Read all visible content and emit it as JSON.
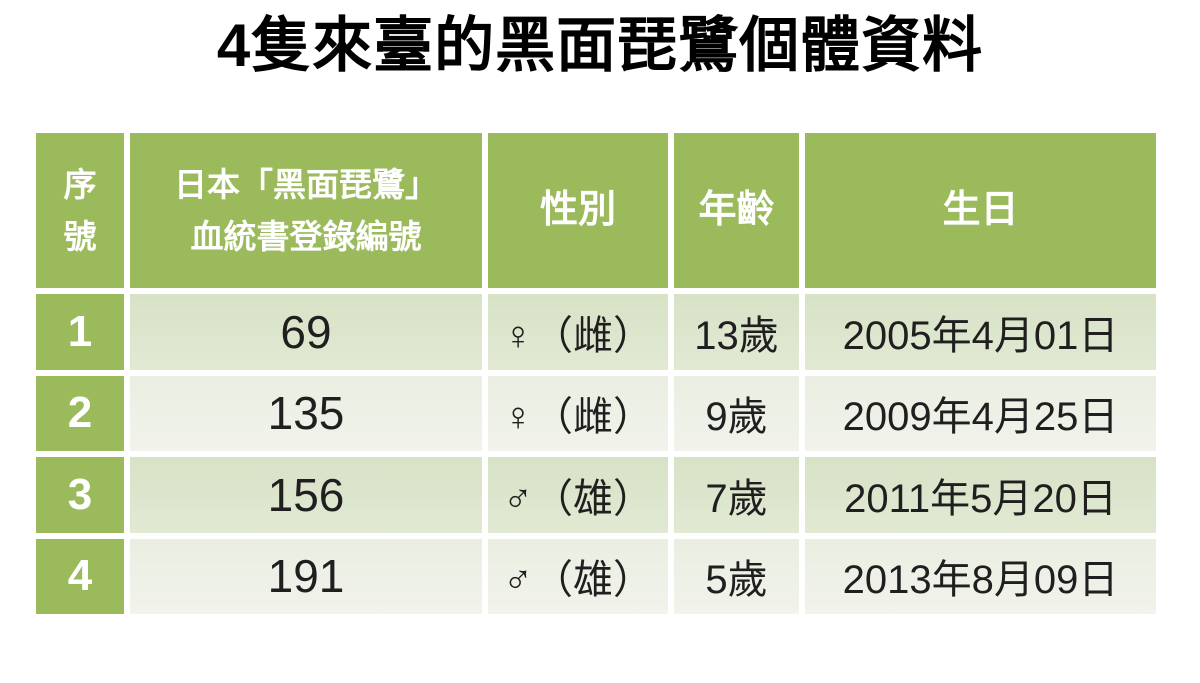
{
  "title": "4隻來臺的黑面琵鷺個體資料",
  "colors": {
    "accent_green": "#9BBA5C",
    "row_band_dark": "#DAE4CA",
    "row_band_light": "#EDF1E6",
    "header_text": "#FFFFFF",
    "body_text": "#1F1F1F",
    "background": "#FFFFFF"
  },
  "table": {
    "headers": [
      {
        "lines": [
          "序",
          "號"
        ]
      },
      {
        "lines": [
          "日本「黑面琵鷺」",
          "血統書登錄編號"
        ]
      },
      {
        "lines": [
          "性別"
        ]
      },
      {
        "lines": [
          "年齡"
        ]
      },
      {
        "lines": [
          "生日"
        ]
      }
    ],
    "rows": [
      {
        "serial": "1",
        "pedigree_no": "69",
        "sex": "♀（雌）",
        "age": "13歲",
        "birthday": "2005年4月01日"
      },
      {
        "serial": "2",
        "pedigree_no": "135",
        "sex": "♀（雌）",
        "age": "9歲",
        "birthday": "2009年4月25日"
      },
      {
        "serial": "3",
        "pedigree_no": "156",
        "sex": "♂（雄）",
        "age": "7歲",
        "birthday": "2011年5月20日"
      },
      {
        "serial": "4",
        "pedigree_no": "191",
        "sex": "♂（雄）",
        "age": "5歲",
        "birthday": "2013年8月09日"
      }
    ]
  }
}
